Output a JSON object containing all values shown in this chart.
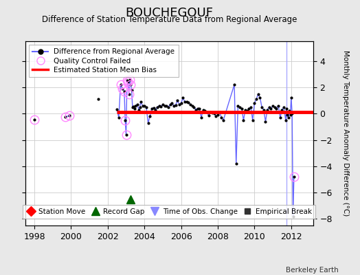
{
  "title": "BOUCHEGOUF",
  "subtitle": "Difference of Station Temperature Data from Regional Average",
  "ylabel_right": "Monthly Temperature Anomaly Difference (°C)",
  "credit": "Berkeley Earth",
  "xlim": [
    1997.5,
    2013.2
  ],
  "ylim": [
    -8.5,
    5.5
  ],
  "yticks": [
    -8,
    -6,
    -4,
    -2,
    0,
    2,
    4
  ],
  "xticks": [
    1998,
    2000,
    2002,
    2004,
    2006,
    2008,
    2010,
    2012
  ],
  "bias_value": 0.1,
  "bias_x_start": 2002.5,
  "bias_x_end": 2013.2,
  "record_gap_x": 2003.25,
  "record_gap_y": -6.5,
  "bg_color": "#e8e8e8",
  "plot_bg_color": "#ffffff",
  "line_color": "#6666ff",
  "bias_color": "#ff0000",
  "qc_color": "#ff88ff",
  "obs_change_vertical_x": 2011.75,
  "obs_change_color": "#aaaaff",
  "main_data": [
    [
      1998.0,
      -0.45
    ],
    [
      1999.67,
      -0.25
    ],
    [
      1999.92,
      -0.15
    ],
    [
      2001.5,
      1.1
    ],
    [
      2002.5,
      0.35
    ],
    [
      2002.6,
      -0.3
    ],
    [
      2002.7,
      2.2
    ],
    [
      2002.8,
      1.9
    ],
    [
      2002.9,
      1.7
    ],
    [
      2002.95,
      -0.5
    ],
    [
      2003.0,
      -1.6
    ],
    [
      2003.05,
      2.5
    ],
    [
      2003.1,
      2.4
    ],
    [
      2003.15,
      1.5
    ],
    [
      2003.2,
      2.6
    ],
    [
      2003.25,
      2.2
    ],
    [
      2003.3,
      1.8
    ],
    [
      2003.35,
      0.5
    ],
    [
      2003.4,
      0.55
    ],
    [
      2003.45,
      0.4
    ],
    [
      2003.5,
      0.6
    ],
    [
      2003.6,
      0.7
    ],
    [
      2003.7,
      0.3
    ],
    [
      2003.75,
      0.5
    ],
    [
      2003.8,
      0.9
    ],
    [
      2003.9,
      0.6
    ],
    [
      2004.0,
      0.6
    ],
    [
      2004.1,
      0.5
    ],
    [
      2004.2,
      -0.7
    ],
    [
      2004.3,
      -0.2
    ],
    [
      2004.4,
      0.4
    ],
    [
      2004.5,
      0.45
    ],
    [
      2004.6,
      0.3
    ],
    [
      2004.7,
      0.5
    ],
    [
      2004.8,
      0.6
    ],
    [
      2004.9,
      0.55
    ],
    [
      2005.0,
      0.7
    ],
    [
      2005.1,
      0.6
    ],
    [
      2005.2,
      0.6
    ],
    [
      2005.3,
      0.5
    ],
    [
      2005.4,
      0.7
    ],
    [
      2005.5,
      0.8
    ],
    [
      2005.6,
      0.6
    ],
    [
      2005.7,
      0.65
    ],
    [
      2005.8,
      1.0
    ],
    [
      2005.9,
      0.7
    ],
    [
      2006.0,
      0.8
    ],
    [
      2006.1,
      1.2
    ],
    [
      2006.2,
      0.9
    ],
    [
      2006.3,
      0.9
    ],
    [
      2006.4,
      0.85
    ],
    [
      2006.5,
      0.7
    ],
    [
      2006.6,
      0.6
    ],
    [
      2006.7,
      0.5
    ],
    [
      2006.8,
      0.3
    ],
    [
      2006.9,
      0.4
    ],
    [
      2007.0,
      0.4
    ],
    [
      2007.1,
      -0.3
    ],
    [
      2007.2,
      0.3
    ],
    [
      2007.3,
      0.2
    ],
    [
      2007.4,
      0.1
    ],
    [
      2007.5,
      -0.15
    ],
    [
      2007.6,
      0.1
    ],
    [
      2007.7,
      0.05
    ],
    [
      2007.8,
      0.0
    ],
    [
      2007.9,
      -0.2
    ],
    [
      2008.0,
      -0.1
    ],
    [
      2008.1,
      0.1
    ],
    [
      2008.2,
      -0.3
    ],
    [
      2008.3,
      -0.5
    ],
    [
      2008.9,
      2.2
    ],
    [
      2009.0,
      -3.8
    ],
    [
      2009.1,
      0.6
    ],
    [
      2009.2,
      0.5
    ],
    [
      2009.3,
      0.4
    ],
    [
      2009.4,
      -0.5
    ],
    [
      2009.5,
      0.3
    ],
    [
      2009.6,
      0.2
    ],
    [
      2009.7,
      0.4
    ],
    [
      2009.8,
      0.5
    ],
    [
      2009.9,
      -0.5
    ],
    [
      2010.0,
      0.8
    ],
    [
      2010.1,
      1.1
    ],
    [
      2010.2,
      1.5
    ],
    [
      2010.3,
      1.2
    ],
    [
      2010.4,
      0.5
    ],
    [
      2010.5,
      0.3
    ],
    [
      2010.6,
      -0.6
    ],
    [
      2010.7,
      0.3
    ],
    [
      2010.8,
      0.5
    ],
    [
      2010.9,
      0.4
    ],
    [
      2011.0,
      0.6
    ],
    [
      2011.1,
      0.5
    ],
    [
      2011.2,
      0.4
    ],
    [
      2011.3,
      0.6
    ],
    [
      2011.4,
      -0.3
    ],
    [
      2011.5,
      0.3
    ],
    [
      2011.6,
      0.5
    ],
    [
      2011.7,
      -0.5
    ],
    [
      2011.75,
      0.4
    ],
    [
      2011.8,
      -0.1
    ],
    [
      2011.85,
      -0.3
    ],
    [
      2011.9,
      0.2
    ],
    [
      2011.95,
      -0.1
    ],
    [
      2012.0,
      1.2
    ],
    [
      2012.05,
      0.0
    ],
    [
      2012.1,
      -7.8
    ],
    [
      2012.15,
      -4.8
    ]
  ],
  "qc_failed": [
    [
      1998.0,
      -0.45
    ],
    [
      1999.67,
      -0.25
    ],
    [
      1999.92,
      -0.15
    ],
    [
      2002.7,
      2.2
    ],
    [
      2002.8,
      1.9
    ],
    [
      2002.9,
      1.7
    ],
    [
      2002.95,
      -0.5
    ],
    [
      2003.0,
      -1.6
    ],
    [
      2003.05,
      2.5
    ],
    [
      2003.1,
      2.4
    ],
    [
      2003.15,
      1.5
    ],
    [
      2003.2,
      2.6
    ],
    [
      2003.25,
      2.2
    ],
    [
      2012.15,
      -4.8
    ]
  ]
}
